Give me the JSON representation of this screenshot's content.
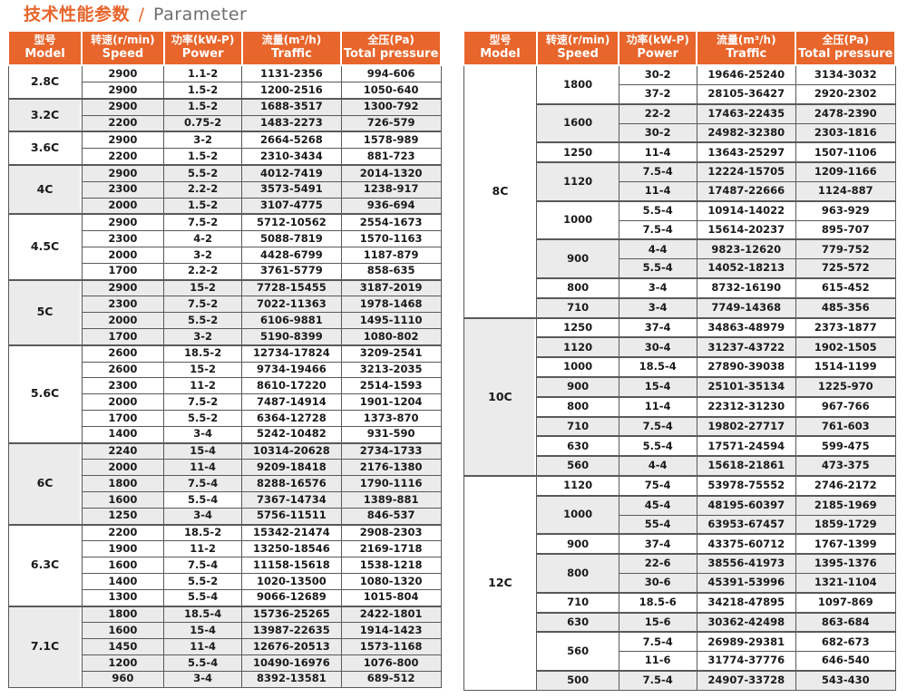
{
  "title": {
    "zh": "技术性能参数",
    "divider": "/",
    "en": "Parameter"
  },
  "colors": {
    "accent_orange": "#E8652B",
    "row_shade_gray": "#EBEBEB",
    "border_dark": "#58595B",
    "border_light": "#A9A9A9",
    "title_gray": "#6D6E71",
    "text": "#1A1A1A"
  },
  "columns": [
    {
      "zh": "型号",
      "en": "Model"
    },
    {
      "zh": "转速(r/min)",
      "en": "Speed"
    },
    {
      "zh": "功率(kW-P)",
      "en": "Power"
    },
    {
      "zh": "流量(m³/h)",
      "en": "Traffic"
    },
    {
      "zh": "全压(Pa)",
      "en": "Total pressure"
    }
  ],
  "left_table": {
    "groups": [
      {
        "model": "2.8C",
        "shaded": false,
        "rows": [
          [
            "2900",
            "1.1-2",
            "1131-2356",
            "994-606"
          ],
          [
            "2900",
            "1.5-2",
            "1200-2516",
            "1050-640"
          ]
        ]
      },
      {
        "model": "3.2C",
        "shaded": true,
        "rows": [
          [
            "2900",
            "1.5-2",
            "1688-3517",
            "1300-792"
          ],
          [
            "2200",
            "0.75-2",
            "1483-2273",
            "726-579"
          ]
        ]
      },
      {
        "model": "3.6C",
        "shaded": false,
        "rows": [
          [
            "2900",
            "3-2",
            "2664-5268",
            "1578-989"
          ],
          [
            "2200",
            "1.5-2",
            "2310-3434",
            "881-723"
          ]
        ]
      },
      {
        "model": "4C",
        "shaded": true,
        "rows": [
          [
            "2900",
            "5.5-2",
            "4012-7419",
            "2014-1320"
          ],
          [
            "2300",
            "2.2-2",
            "3573-5491",
            "1238-917"
          ],
          [
            "2000",
            "1.5-2",
            "3107-4775",
            "936-694"
          ]
        ]
      },
      {
        "model": "4.5C",
        "shaded": false,
        "rows": [
          [
            "2900",
            "7.5-2",
            "5712-10562",
            "2554-1673"
          ],
          [
            "2300",
            "4-2",
            "5088-7819",
            "1570-1163"
          ],
          [
            "2000",
            "3-2",
            "4428-6799",
            "1187-879"
          ],
          [
            "1700",
            "2.2-2",
            "3761-5779",
            "858-635"
          ]
        ]
      },
      {
        "model": "5C",
        "shaded": true,
        "rows": [
          [
            "2900",
            "15-2",
            "7728-15455",
            "3187-2019"
          ],
          [
            "2300",
            "7.5-2",
            "7022-11363",
            "1978-1468"
          ],
          [
            "2000",
            "5.5-2",
            "6106-9881",
            "1495-1110"
          ],
          [
            "1700",
            "3-2",
            "5190-8399",
            "1080-802"
          ]
        ]
      },
      {
        "model": "5.6C",
        "shaded": false,
        "rows": [
          [
            "2600",
            "18.5-2",
            "12734-17824",
            "3209-2541"
          ],
          [
            "2600",
            "15-2",
            "9734-19466",
            "3213-2035"
          ],
          [
            "2300",
            "11-2",
            "8610-17220",
            "2514-1593"
          ],
          [
            "2000",
            "7.5-2",
            "7487-14914",
            "1901-1204"
          ],
          [
            "1700",
            "5.5-2",
            "6364-12728",
            "1373-870"
          ],
          [
            "1400",
            "3-4",
            "5242-10482",
            "931-590"
          ]
        ]
      },
      {
        "model": "6C",
        "shaded": true,
        "power_white_row": 3,
        "rows": [
          [
            "2240",
            "15-4",
            "10314-20628",
            "2734-1733"
          ],
          [
            "2000",
            "11-4",
            "9209-18418",
            "2176-1380"
          ],
          [
            "1800",
            "7.5-4",
            "8288-16576",
            "1790-1116"
          ],
          [
            "1600",
            "5.5-4",
            "7367-14734",
            "1389-881"
          ],
          [
            "1250",
            "3-4",
            "5756-11511",
            "846-537"
          ]
        ]
      },
      {
        "model": "6.3C",
        "shaded": false,
        "rows": [
          [
            "2200",
            "18.5-2",
            "15342-21474",
            "2908-2303"
          ],
          [
            "1900",
            "11-2",
            "13250-18546",
            "2169-1718"
          ],
          [
            "1600",
            "7.5-4",
            "11158-15618",
            "1538-1218"
          ],
          [
            "1400",
            "5.5-2",
            "1020-13500",
            "1080-1320"
          ],
          [
            "1300",
            "5.5-4",
            "9066-12689",
            "1015-804"
          ]
        ]
      },
      {
        "model": "7.1C",
        "shaded": true,
        "rows": [
          [
            "1800",
            "18.5-4",
            "15736-25265",
            "2422-1801"
          ],
          [
            "1600",
            "15-4",
            "13987-22635",
            "1914-1423"
          ],
          [
            "1450",
            "11-4",
            "12676-20513",
            "1573-1168"
          ],
          [
            "1200",
            "5.5-4",
            "10490-16976",
            "1076-800"
          ],
          [
            "960",
            "3-4",
            "8392-13581",
            "689-512"
          ]
        ]
      }
    ]
  },
  "right_table": {
    "groups": [
      {
        "model": "8C",
        "shaded": false,
        "speed_groups": [
          {
            "speed": "1800",
            "shaded": false,
            "rows": [
              [
                "30-2",
                "19646-25240",
                "3134-3032"
              ],
              [
                "37-2",
                "28105-36427",
                "2920-2302"
              ]
            ]
          },
          {
            "speed": "1600",
            "shaded": true,
            "rows": [
              [
                "22-2",
                "17463-22435",
                "2478-2390"
              ],
              [
                "30-2",
                "24982-32380",
                "2303-1816"
              ]
            ]
          },
          {
            "speed": "1250",
            "shaded": false,
            "rows": [
              [
                "11-4",
                "13643-25297",
                "1507-1106"
              ]
            ]
          },
          {
            "speed": "1120",
            "shaded": true,
            "rows": [
              [
                "7.5-4",
                "12224-15705",
                "1209-1166"
              ],
              [
                "11-4",
                "17487-22666",
                "1124-887"
              ]
            ]
          },
          {
            "speed": "1000",
            "shaded": false,
            "rows": [
              [
                "5.5-4",
                "10914-14022",
                "963-929"
              ],
              [
                "7.5-4",
                "15614-20237",
                "895-707"
              ]
            ]
          },
          {
            "speed": "900",
            "shaded": true,
            "rows": [
              [
                "4-4",
                "9823-12620",
                "779-752"
              ],
              [
                "5.5-4",
                "14052-18213",
                "725-572"
              ]
            ]
          },
          {
            "speed": "800",
            "shaded": false,
            "rows": [
              [
                "3-4",
                "8732-16190",
                "615-452"
              ]
            ]
          },
          {
            "speed": "710",
            "shaded": true,
            "rows": [
              [
                "3-4",
                "7749-14368",
                "485-356"
              ]
            ]
          }
        ]
      },
      {
        "model": "10C",
        "shaded": true,
        "speed_groups": [
          {
            "speed": "1250",
            "shaded": false,
            "rows": [
              [
                "37-4",
                "34863-48979",
                "2373-1877"
              ]
            ]
          },
          {
            "speed": "1120",
            "shaded": true,
            "rows": [
              [
                "30-4",
                "31237-43722",
                "1902-1505"
              ]
            ]
          },
          {
            "speed": "1000",
            "shaded": false,
            "rows": [
              [
                "18.5-4",
                "27890-39038",
                "1514-1199"
              ]
            ]
          },
          {
            "speed": "900",
            "shaded": true,
            "rows": [
              [
                "15-4",
                "25101-35134",
                "1225-970"
              ]
            ]
          },
          {
            "speed": "800",
            "shaded": false,
            "rows": [
              [
                "11-4",
                "22312-31230",
                "967-766"
              ]
            ]
          },
          {
            "speed": "710",
            "shaded": true,
            "rows": [
              [
                "7.5-4",
                "19802-27717",
                "761-603"
              ]
            ]
          },
          {
            "speed": "630",
            "shaded": false,
            "rows": [
              [
                "5.5-4",
                "17571-24594",
                "599-475"
              ]
            ]
          },
          {
            "speed": "560",
            "shaded": true,
            "rows": [
              [
                "4-4",
                "15618-21861",
                "473-375"
              ]
            ]
          }
        ]
      },
      {
        "model": "12C",
        "shaded": false,
        "speed_groups": [
          {
            "speed": "1120",
            "shaded": false,
            "rows": [
              [
                "75-4",
                "53978-75552",
                "2746-2172"
              ]
            ]
          },
          {
            "speed": "1000",
            "shaded": true,
            "rows": [
              [
                "45-4",
                "48195-60397",
                "2185-1969"
              ],
              [
                "55-4",
                "63953-67457",
                "1859-1729"
              ]
            ]
          },
          {
            "speed": "900",
            "shaded": false,
            "rows": [
              [
                "37-4",
                "43375-60712",
                "1767-1399"
              ]
            ]
          },
          {
            "speed": "800",
            "shaded": true,
            "rows": [
              [
                "22-6",
                "38556-41973",
                "1395-1376"
              ],
              [
                "30-6",
                "45391-53996",
                "1321-1104"
              ]
            ]
          },
          {
            "speed": "710",
            "shaded": false,
            "rows": [
              [
                "18.5-6",
                "34218-47895",
                "1097-869"
              ]
            ]
          },
          {
            "speed": "630",
            "shaded": true,
            "rows": [
              [
                "15-6",
                "30362-42498",
                "863-684"
              ]
            ]
          },
          {
            "speed": "560",
            "shaded": false,
            "rows": [
              [
                "7.5-4",
                "26989-29381",
                "682-673"
              ],
              [
                "11-6",
                "31774-37776",
                "646-540"
              ]
            ]
          },
          {
            "speed": "500",
            "shaded": true,
            "rows": [
              [
                "7.5-4",
                "24907-33728",
                "543-430"
              ]
            ]
          }
        ]
      }
    ]
  }
}
